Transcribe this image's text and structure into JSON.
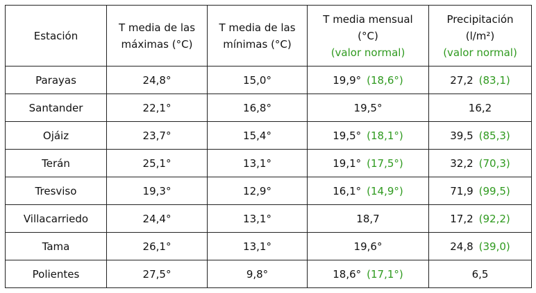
{
  "table": {
    "header": [
      [
        "Estación"
      ],
      [
        "T media de las",
        "máximas (°C)"
      ],
      [
        "T media de las",
        "mínimas (°C)"
      ],
      [
        "T media mensual",
        "(°C)",
        "(valor normal)"
      ],
      [
        "Precipitación",
        "(l/m²)",
        "(valor normal)"
      ]
    ],
    "rows": [
      {
        "station": "Parayas",
        "tmax": "24,8°",
        "tmin": "15,0°",
        "tmean": "19,9°",
        "tmean_normal": "(18,6°)",
        "precip": "27,2",
        "precip_normal": "(83,1)"
      },
      {
        "station": "Santander",
        "tmax": "22,1°",
        "tmin": "16,8°",
        "tmean": "19,5°",
        "precip": "16,2"
      },
      {
        "station": "Ojáiz",
        "tmax": "23,7°",
        "tmin": "15,4°",
        "tmean": "19,5°",
        "tmean_normal": "(18,1°)",
        "precip": "39,5",
        "precip_normal": "(85,3)"
      },
      {
        "station": "Terán",
        "tmax": "25,1°",
        "tmin": "13,1°",
        "tmean": "19,1°",
        "tmean_normal": "(17,5°)",
        "precip": "32,2",
        "precip_normal": "(70,3)"
      },
      {
        "station": "Tresviso",
        "tmax": "19,3°",
        "tmin": "12,9°",
        "tmean": "16,1°",
        "tmean_normal": "(14,9°)",
        "precip": "71,9",
        "precip_normal": "(99,5)"
      },
      {
        "station": "Villacarriedo",
        "tmax": "24,4°",
        "tmin": "13,1°",
        "tmean": "18,7",
        "precip": "17,2",
        "precip_normal": "(92,2)"
      },
      {
        "station": "Tama",
        "tmax": "26,1°",
        "tmin": "13,1°",
        "tmean": "19,6°",
        "precip": "24,8",
        "precip_normal": "(39,0)"
      },
      {
        "station": "Polientes",
        "tmax": "27,5°",
        "tmin": "9,8°",
        "tmean": "18,6°",
        "tmean_normal": "(17,1°)",
        "precip": "6,5"
      }
    ]
  }
}
